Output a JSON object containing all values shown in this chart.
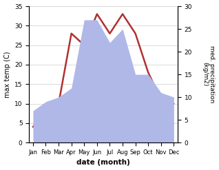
{
  "months": [
    "Jan",
    "Feb",
    "Mar",
    "Apr",
    "May",
    "Jun",
    "Jul",
    "Aug",
    "Sep",
    "Oct",
    "Nov",
    "Dec"
  ],
  "temperature": [
    4,
    9,
    10,
    28,
    25,
    33,
    28,
    33,
    28,
    18,
    11,
    10
  ],
  "precipitation": [
    7,
    9,
    10,
    12,
    27,
    27,
    22,
    25,
    15,
    15,
    11,
    10
  ],
  "temp_color": "#b03030",
  "precip_color": "#b0b8e8",
  "ylabel_left": "max temp (C)",
  "ylabel_right": "med. precipitation\n(kg/m2)",
  "xlabel": "date (month)",
  "ylim_left": [
    0,
    35
  ],
  "ylim_right": [
    0,
    30
  ],
  "yticks_left": [
    0,
    5,
    10,
    15,
    20,
    25,
    30,
    35
  ],
  "yticks_right": [
    0,
    5,
    10,
    15,
    20,
    25,
    30
  ],
  "background_color": "#ffffff"
}
